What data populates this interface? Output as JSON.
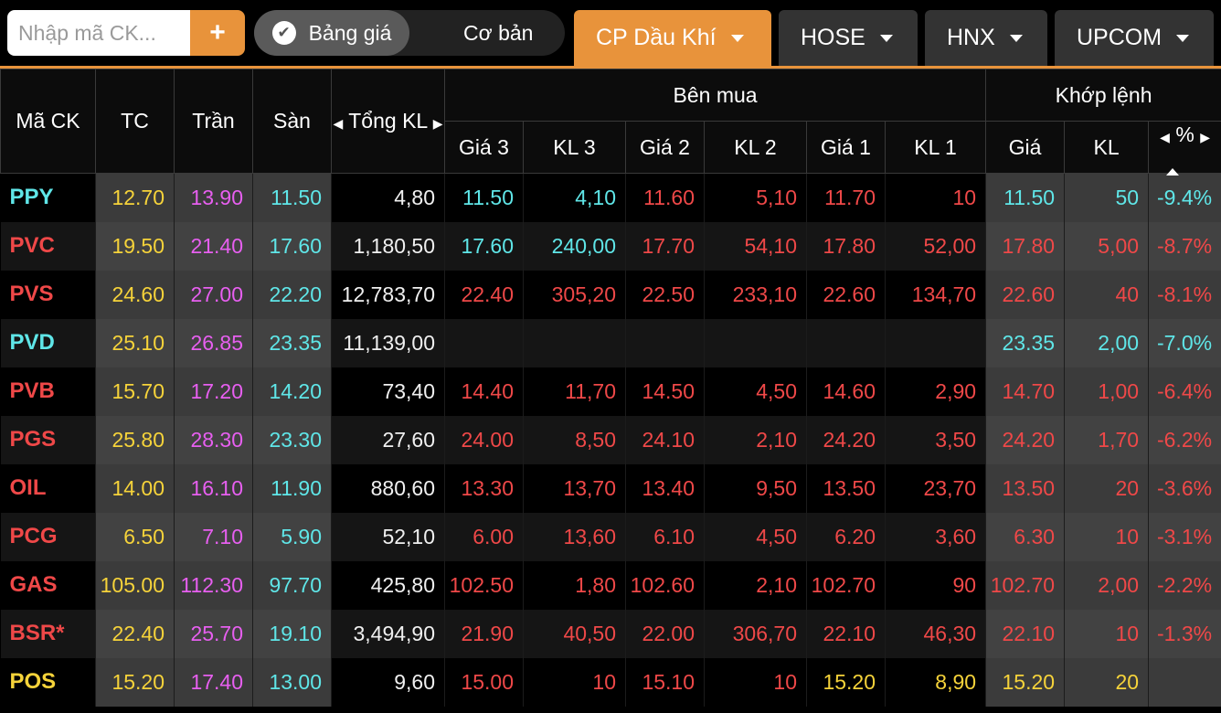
{
  "toolbar": {
    "search_placeholder": "Nhập mã CK...",
    "add_label": "+",
    "mode_active": "Bảng giá",
    "mode_inactive": "Cơ bản",
    "tabs": [
      "CP Dầu Khí",
      "HOSE",
      "HNX",
      "UPCOM"
    ]
  },
  "headers": {
    "symbol": "Mã CK",
    "ref": "TC",
    "ceil": "Trần",
    "floor": "Sàn",
    "total": "Tổng KL",
    "buy_group": "Bên mua",
    "match_group": "Khớp lệnh",
    "p3": "Giá 3",
    "v3": "KL 3",
    "p2": "Giá 2",
    "v2": "KL 2",
    "p1": "Giá 1",
    "v1": "KL 1",
    "mp": "Giá",
    "mv": "KL",
    "pct": "%"
  },
  "colors": {
    "accent": "#e8933b",
    "ceil": "#e75ff0",
    "floor": "#5fe6e8",
    "ref": "#f6d33a",
    "down": "#ef4848"
  },
  "rows": [
    {
      "sym": "PPY",
      "sc": "c",
      "tc": "12.70",
      "tr": "13.90",
      "sa": "11.50",
      "tkl": "4,80",
      "p3": "11.50",
      "p3c": "c",
      "v3": "4,10",
      "v3c": "c",
      "p2": "11.60",
      "p2c": "r",
      "v2": "5,10",
      "v2c": "r",
      "p1": "11.70",
      "p1c": "r",
      "v1": "10",
      "v1c": "r",
      "mp": "11.50",
      "mpc": "c",
      "mv": "50",
      "mvc": "c",
      "pct": "-9.4%",
      "pctc": "c"
    },
    {
      "sym": "PVC",
      "sc": "r",
      "tc": "19.50",
      "tr": "21.40",
      "sa": "17.60",
      "tkl": "1,180,50",
      "p3": "17.60",
      "p3c": "c",
      "v3": "240,00",
      "v3c": "c",
      "p2": "17.70",
      "p2c": "r",
      "v2": "54,10",
      "v2c": "r",
      "p1": "17.80",
      "p1c": "r",
      "v1": "52,00",
      "v1c": "r",
      "mp": "17.80",
      "mpc": "r",
      "mv": "5,00",
      "mvc": "r",
      "pct": "-8.7%",
      "pctc": "r"
    },
    {
      "sym": "PVS",
      "sc": "r",
      "tc": "24.60",
      "tr": "27.00",
      "sa": "22.20",
      "tkl": "12,783,70",
      "p3": "22.40",
      "p3c": "r",
      "v3": "305,20",
      "v3c": "r",
      "p2": "22.50",
      "p2c": "r",
      "v2": "233,10",
      "v2c": "r",
      "p1": "22.60",
      "p1c": "r",
      "v1": "134,70",
      "v1c": "r",
      "mp": "22.60",
      "mpc": "r",
      "mv": "40",
      "mvc": "r",
      "pct": "-8.1%",
      "pctc": "r"
    },
    {
      "sym": "PVD",
      "sc": "c",
      "tc": "25.10",
      "tr": "26.85",
      "sa": "23.35",
      "tkl": "11,139,00",
      "p3": "",
      "p3c": "r",
      "v3": "",
      "v3c": "r",
      "p2": "",
      "p2c": "r",
      "v2": "",
      "v2c": "r",
      "p1": "",
      "p1c": "r",
      "v1": "",
      "v1c": "r",
      "mp": "23.35",
      "mpc": "c",
      "mv": "2,00",
      "mvc": "c",
      "pct": "-7.0%",
      "pctc": "c"
    },
    {
      "sym": "PVB",
      "sc": "r",
      "tc": "15.70",
      "tr": "17.20",
      "sa": "14.20",
      "tkl": "73,40",
      "p3": "14.40",
      "p3c": "r",
      "v3": "11,70",
      "v3c": "r",
      "p2": "14.50",
      "p2c": "r",
      "v2": "4,50",
      "v2c": "r",
      "p1": "14.60",
      "p1c": "r",
      "v1": "2,90",
      "v1c": "r",
      "mp": "14.70",
      "mpc": "r",
      "mv": "1,00",
      "mvc": "r",
      "pct": "-6.4%",
      "pctc": "r"
    },
    {
      "sym": "PGS",
      "sc": "r",
      "tc": "25.80",
      "tr": "28.30",
      "sa": "23.30",
      "tkl": "27,60",
      "p3": "24.00",
      "p3c": "r",
      "v3": "8,50",
      "v3c": "r",
      "p2": "24.10",
      "p2c": "r",
      "v2": "2,10",
      "v2c": "r",
      "p1": "24.20",
      "p1c": "r",
      "v1": "3,50",
      "v1c": "r",
      "mp": "24.20",
      "mpc": "r",
      "mv": "1,70",
      "mvc": "r",
      "pct": "-6.2%",
      "pctc": "r"
    },
    {
      "sym": "OIL",
      "sc": "r",
      "tc": "14.00",
      "tr": "16.10",
      "sa": "11.90",
      "tkl": "880,60",
      "p3": "13.30",
      "p3c": "r",
      "v3": "13,70",
      "v3c": "r",
      "p2": "13.40",
      "p2c": "r",
      "v2": "9,50",
      "v2c": "r",
      "p1": "13.50",
      "p1c": "r",
      "v1": "23,70",
      "v1c": "r",
      "mp": "13.50",
      "mpc": "r",
      "mv": "20",
      "mvc": "r",
      "pct": "-3.6%",
      "pctc": "r"
    },
    {
      "sym": "PCG",
      "sc": "r",
      "tc": "6.50",
      "tr": "7.10",
      "sa": "5.90",
      "tkl": "52,10",
      "p3": "6.00",
      "p3c": "r",
      "v3": "13,60",
      "v3c": "r",
      "p2": "6.10",
      "p2c": "r",
      "v2": "4,50",
      "v2c": "r",
      "p1": "6.20",
      "p1c": "r",
      "v1": "3,60",
      "v1c": "r",
      "mp": "6.30",
      "mpc": "r",
      "mv": "10",
      "mvc": "r",
      "pct": "-3.1%",
      "pctc": "r"
    },
    {
      "sym": "GAS",
      "sc": "r",
      "tc": "105.00",
      "tr": "112.30",
      "sa": "97.70",
      "tkl": "425,80",
      "p3": "102.50",
      "p3c": "r",
      "v3": "1,80",
      "v3c": "r",
      "p2": "102.60",
      "p2c": "r",
      "v2": "2,10",
      "v2c": "r",
      "p1": "102.70",
      "p1c": "r",
      "v1": "90",
      "v1c": "r",
      "mp": "102.70",
      "mpc": "r",
      "mv": "2,00",
      "mvc": "r",
      "pct": "-2.2%",
      "pctc": "r"
    },
    {
      "sym": "BSR*",
      "sc": "r",
      "tc": "22.40",
      "tr": "25.70",
      "sa": "19.10",
      "tkl": "3,494,90",
      "p3": "21.90",
      "p3c": "r",
      "v3": "40,50",
      "v3c": "r",
      "p2": "22.00",
      "p2c": "r",
      "v2": "306,70",
      "v2c": "r",
      "p1": "22.10",
      "p1c": "r",
      "v1": "46,30",
      "v1c": "r",
      "mp": "22.10",
      "mpc": "r",
      "mv": "10",
      "mvc": "r",
      "pct": "-1.3%",
      "pctc": "r"
    },
    {
      "sym": "POS",
      "sc": "y",
      "tc": "15.20",
      "tr": "17.40",
      "sa": "13.00",
      "tkl": "9,60",
      "p3": "15.00",
      "p3c": "r",
      "v3": "10",
      "v3c": "r",
      "p2": "15.10",
      "p2c": "r",
      "v2": "10",
      "v2c": "r",
      "p1": "15.20",
      "p1c": "y",
      "v1": "8,90",
      "v1c": "y",
      "mp": "15.20",
      "mpc": "y",
      "mv": "20",
      "mvc": "y",
      "pct": "",
      "pctc": "y"
    }
  ]
}
